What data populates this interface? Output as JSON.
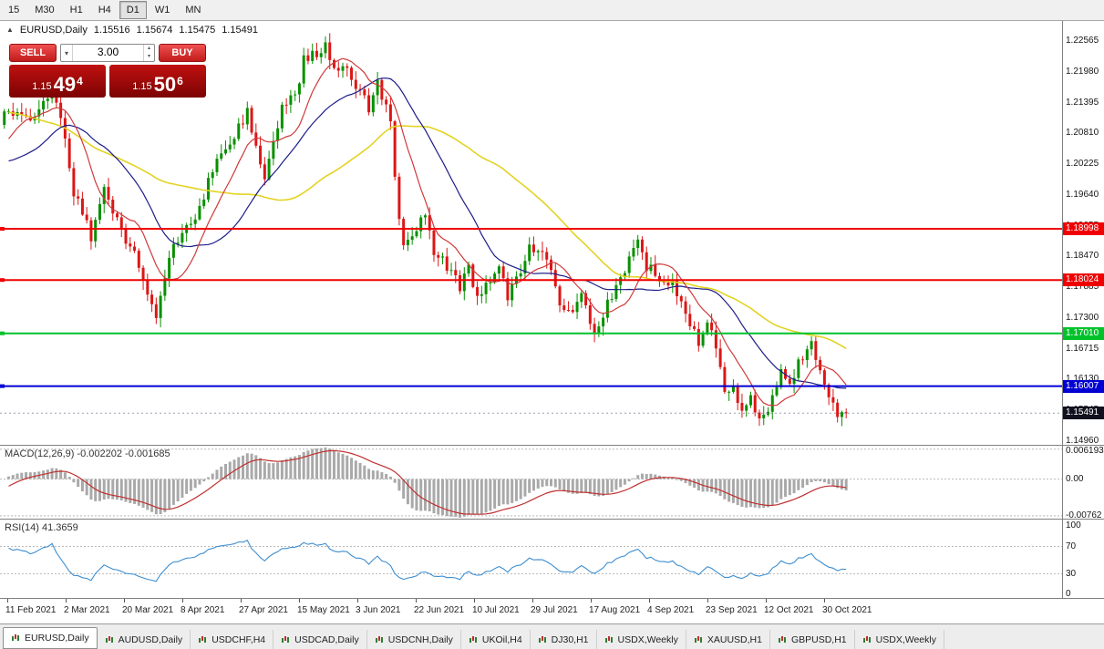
{
  "toolbar": {
    "timeframes": [
      "15",
      "M30",
      "H1",
      "H4",
      "D1",
      "W1",
      "MN"
    ],
    "active": "D1"
  },
  "chart_header": {
    "symbol": "EURUSD,Daily",
    "open": "1.15516",
    "high": "1.15674",
    "low": "1.15475",
    "close": "1.15491"
  },
  "one_click": {
    "sell_label": "SELL",
    "buy_label": "BUY",
    "volume": "3.00",
    "bid_prefix": "1.15",
    "bid_big": "49",
    "bid_sup": "4",
    "ask_prefix": "1.15",
    "ask_big": "50",
    "ask_sup": "6"
  },
  "bottom_tabs": [
    "EURUSD,Daily",
    "AUDUSD,Daily",
    "USDCHF,H4",
    "USDCAD,Daily",
    "USDCNH,Daily",
    "UKOil,H4",
    "DJ30,H1",
    "USDX,Weekly",
    "XAUUSD,H1",
    "GBPUSD,H1",
    "USDX,Weekly"
  ],
  "active_tab_index": 0,
  "chart_data": {
    "type": "candlestick",
    "symbol": "EURUSD",
    "timeframe": "Daily",
    "y_axis": {
      "p_top": 1.2295,
      "p_bottom": 1.1489,
      "ticks": [
        "1.22565",
        "1.21980",
        "1.21395",
        "1.20810",
        "1.20225",
        "1.19640",
        "1.19055",
        "1.18470",
        "1.17885",
        "1.17300",
        "1.16715",
        "1.16130",
        "1.15545",
        "1.14960"
      ]
    },
    "x_axis": {
      "labels": [
        "11 Feb 2021",
        "2 Mar 2021",
        "20 Mar 2021",
        "8 Apr 2021",
        "27 Apr 2021",
        "15 May 2021",
        "3 Jun 2021",
        "22 Jun 2021",
        "10 Jul 2021",
        "29 Jul 2021",
        "17 Aug 2021",
        "4 Sep 2021",
        "23 Sep 2021",
        "12 Oct 2021",
        "30 Oct 2021"
      ]
    },
    "candle_colors": {
      "up": "#089000",
      "down": "#dc1616"
    },
    "moving_averages": [
      {
        "period": 10,
        "color": "#cf3a3a",
        "width": 1.2
      },
      {
        "period": 24,
        "color": "#1c1c8a",
        "width": 1.2
      },
      {
        "period": 52,
        "color": "#e3d322",
        "width": 1.6
      }
    ],
    "horizontal_lines": [
      {
        "price": 1.18998,
        "label": "1.18998",
        "color": "#f00000",
        "width": 2
      },
      {
        "price": 1.18024,
        "label": "1.18024",
        "color": "#f00000",
        "width": 2
      },
      {
        "price": 1.1701,
        "label": "1.17010",
        "color": "#00c22a",
        "width": 2
      },
      {
        "price": 1.16007,
        "label": "1.16007",
        "color": "#0000d2",
        "width": 2
      }
    ],
    "current_price": {
      "value": 1.15491,
      "label": "1.15491",
      "color": "#10101e"
    },
    "candles": {
      "count": 194,
      "prehistory_anchors": [
        [
          -60,
          1.213
        ],
        [
          -50,
          1.2205
        ],
        [
          -42,
          1.228
        ],
        [
          -34,
          1.2215
        ],
        [
          -24,
          1.2065
        ],
        [
          -14,
          1.1952
        ],
        [
          -7,
          1.204
        ],
        [
          -1,
          1.2115
        ]
      ],
      "close_anchors": [
        [
          0,
          1.213
        ],
        [
          4,
          1.2104
        ],
        [
          7,
          1.2128
        ],
        [
          10,
          1.2168
        ],
        [
          13,
          1.207
        ],
        [
          15,
          1.1972
        ],
        [
          19,
          1.1885
        ],
        [
          22,
          1.1975
        ],
        [
          25,
          1.1916
        ],
        [
          29,
          1.1848
        ],
        [
          32,
          1.1782
        ],
        [
          34,
          1.173
        ],
        [
          38,
          1.1873
        ],
        [
          42,
          1.1905
        ],
        [
          45,
          1.1966
        ],
        [
          48,
          1.2034
        ],
        [
          52,
          1.208
        ],
        [
          55,
          1.2124
        ],
        [
          57,
          1.206
        ],
        [
          59,
          1.2004
        ],
        [
          63,
          1.2129
        ],
        [
          66,
          1.215
        ],
        [
          68,
          1.2224
        ],
        [
          71,
          1.223
        ],
        [
          73,
          1.225
        ],
        [
          76,
          1.219
        ],
        [
          78,
          1.2216
        ],
        [
          80,
          1.2167
        ],
        [
          83,
          1.2132
        ],
        [
          85,
          1.2174
        ],
        [
          88,
          1.211
        ],
        [
          89,
          1.1994
        ],
        [
          91,
          1.1863
        ],
        [
          93,
          1.189
        ],
        [
          96,
          1.1936
        ],
        [
          98,
          1.1858
        ],
        [
          100,
          1.1846
        ],
        [
          102,
          1.1812
        ],
        [
          104,
          1.179
        ],
        [
          106,
          1.1825
        ],
        [
          108,
          1.1775
        ],
        [
          111,
          1.1795
        ],
        [
          113,
          1.182
        ],
        [
          115,
          1.177
        ],
        [
          118,
          1.1815
        ],
        [
          120,
          1.187
        ],
        [
          122,
          1.1855
        ],
        [
          124,
          1.1838
        ],
        [
          127,
          1.176
        ],
        [
          129,
          1.1739
        ],
        [
          132,
          1.1778
        ],
        [
          134,
          1.172
        ],
        [
          135,
          1.1697
        ],
        [
          137,
          1.174
        ],
        [
          140,
          1.1795
        ],
        [
          143,
          1.184
        ],
        [
          145,
          1.1878
        ],
        [
          147,
          1.183
        ],
        [
          149,
          1.1817
        ],
        [
          151,
          1.179
        ],
        [
          153,
          1.1805
        ],
        [
          156,
          1.173
        ],
        [
          159,
          1.1686
        ],
        [
          161,
          1.1725
        ],
        [
          163,
          1.1682
        ],
        [
          165,
          1.158
        ],
        [
          167,
          1.16
        ],
        [
          169,
          1.1557
        ],
        [
          171,
          1.1585
        ],
        [
          173,
          1.153
        ],
        [
          175,
          1.156
        ],
        [
          178,
          1.1633
        ],
        [
          180,
          1.16
        ],
        [
          182,
          1.1645
        ],
        [
          185,
          1.1682
        ],
        [
          188,
          1.1605
        ],
        [
          190,
          1.1571
        ],
        [
          191,
          1.154
        ],
        [
          193,
          1.15491
        ]
      ]
    },
    "indicators": [
      {
        "name": "MACD",
        "label": "MACD(12,26,9) -0.002202 -0.001685",
        "fast": 12,
        "slow": 26,
        "signal": 9,
        "last_values": [
          -0.002202,
          -0.001685
        ],
        "axis": {
          "p_top": 0.0069,
          "p_bottom": -0.0082,
          "labels": [
            "0.006193",
            "0.00",
            "-0.00762"
          ],
          "levels": [
            0.006193,
            0,
            -0.00762
          ]
        },
        "histogram_color": "#a9a9a9",
        "signal_color": "#c03030"
      },
      {
        "name": "RSI",
        "label": "RSI(14) 41.3659",
        "period": 14,
        "last_value": 41.3659,
        "color": "#3e8ed0",
        "axis": {
          "labels": [
            "100",
            "70",
            "30",
            "0"
          ],
          "level_values": [
            100,
            70,
            30,
            0
          ],
          "dashed_levels": [
            70,
            30
          ]
        }
      }
    ]
  }
}
